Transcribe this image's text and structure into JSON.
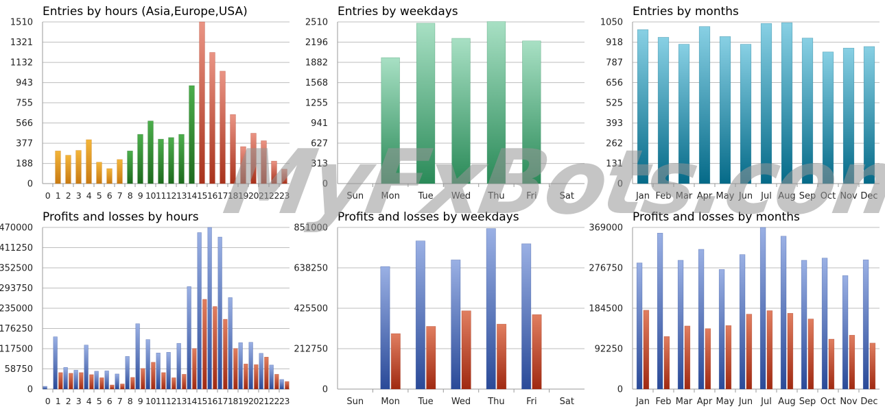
{
  "watermark": "MyFxBots.com",
  "colors": {
    "orange": [
      "#f3b53a",
      "#c87a12"
    ],
    "green": [
      "#4cae4c",
      "#1e6a1e"
    ],
    "red": [
      "#ea9484",
      "#a8321c"
    ],
    "teal": [
      "#a8e0c4",
      "#2a8a58"
    ],
    "cyan": [
      "#88d0e4",
      "#056a88"
    ],
    "blue": [
      "#9ab0e4",
      "#2a4a98"
    ],
    "darkred": [
      "#e07e60",
      "#a02a12"
    ]
  },
  "chart_data": [
    {
      "type": "bar",
      "title": "Entries by hours (Asia,Europe,USA)",
      "categories": [
        "0",
        "1",
        "2",
        "3",
        "4",
        "5",
        "6",
        "7",
        "8",
        "9",
        "10",
        "11",
        "12",
        "13",
        "14",
        "15",
        "16",
        "17",
        "18",
        "19",
        "20",
        "21",
        "22",
        "23"
      ],
      "ylim": [
        0,
        1510
      ],
      "yticks": [
        "0",
        "188",
        "377",
        "566",
        "755",
        "943",
        "1132",
        "1321",
        "1510"
      ],
      "series": [
        {
          "values": [
            0,
            305,
            265,
            310,
            410,
            200,
            140,
            225,
            305,
            460,
            585,
            415,
            430,
            460,
            915,
            1510,
            1225,
            1050,
            645,
            345,
            470,
            400,
            210,
            135
          ],
          "colors": [
            "orange",
            "orange",
            "orange",
            "orange",
            "orange",
            "orange",
            "orange",
            "orange",
            "green",
            "green",
            "green",
            "green",
            "green",
            "green",
            "green",
            "red",
            "red",
            "red",
            "red",
            "red",
            "red",
            "red",
            "red",
            "red"
          ]
        }
      ]
    },
    {
      "type": "bar",
      "title": "Entries by weekdays",
      "categories": [
        "Sun",
        "Mon",
        "Tue",
        "Wed",
        "Thu",
        "Fri",
        "Sat"
      ],
      "ylim": [
        0,
        2510
      ],
      "yticks": [
        "0",
        "313",
        "627",
        "941",
        "1255",
        "1568",
        "1882",
        "2196",
        "2510"
      ],
      "series": [
        {
          "values": [
            0,
            1955,
            2490,
            2255,
            2515,
            2215,
            0
          ],
          "colors": [
            "teal"
          ]
        }
      ]
    },
    {
      "type": "bar",
      "title": "Entries by months",
      "categories": [
        "Jan",
        "Feb",
        "Mar",
        "Apr",
        "May",
        "Jun",
        "Jul",
        "Aug",
        "Sep",
        "Oct",
        "Nov",
        "Dec"
      ],
      "ylim": [
        0,
        1050
      ],
      "yticks": [
        "0",
        "131",
        "262",
        "393",
        "525",
        "656",
        "787",
        "918",
        "1050"
      ],
      "series": [
        {
          "values": [
            1000,
            950,
            905,
            1020,
            955,
            905,
            1040,
            1045,
            945,
            855,
            880,
            890
          ],
          "colors": [
            "cyan"
          ]
        }
      ]
    },
    {
      "type": "bar",
      "title": "Profits and losses by hours",
      "categories": [
        "0",
        "1",
        "2",
        "3",
        "4",
        "5",
        "6",
        "7",
        "8",
        "9",
        "10",
        "11",
        "12",
        "13",
        "14",
        "15",
        "16",
        "17",
        "18",
        "19",
        "20",
        "21",
        "22",
        "23"
      ],
      "ylim": [
        0,
        470000
      ],
      "yticks": [
        "0",
        "58750",
        "117500",
        "176250",
        "235000",
        "293750",
        "352500",
        "411250",
        "470000"
      ],
      "series": [
        {
          "values": [
            8000,
            152000,
            63000,
            55000,
            128000,
            52000,
            53000,
            44000,
            95000,
            190000,
            144000,
            105000,
            107000,
            133000,
            298000,
            455000,
            470000,
            442000,
            266000,
            135000,
            136000,
            104000,
            70000,
            28000
          ],
          "colors": [
            "blue"
          ]
        },
        {
          "values": [
            0,
            48000,
            46000,
            48000,
            42000,
            33000,
            12000,
            15000,
            34000,
            60000,
            78000,
            48000,
            33000,
            43000,
            118000,
            261000,
            240000,
            203000,
            118000,
            73000,
            71000,
            93000,
            43000,
            22000
          ],
          "colors": [
            "darkred"
          ]
        }
      ]
    },
    {
      "type": "bar",
      "title": "Profits and losses by weekdays",
      "categories": [
        "Sun",
        "Mon",
        "Tue",
        "Wed",
        "Thu",
        "Fri",
        "Sat"
      ],
      "ylim": [
        0,
        851000
      ],
      "yticks": [
        "0",
        "212750",
        "425500",
        "638250",
        "851000"
      ],
      "series": [
        {
          "values": [
            0,
            645000,
            780000,
            680000,
            845000,
            765000,
            0
          ],
          "colors": [
            "blue"
          ]
        },
        {
          "values": [
            0,
            292000,
            330000,
            412000,
            342000,
            392000,
            0
          ],
          "colors": [
            "darkred"
          ]
        }
      ]
    },
    {
      "type": "bar",
      "title": "Profits and losses by months",
      "categories": [
        "Jan",
        "Feb",
        "Mar",
        "Apr",
        "May",
        "Jun",
        "Jul",
        "Aug",
        "Sep",
        "Oct",
        "Nov",
        "Dec"
      ],
      "ylim": [
        0,
        369000
      ],
      "yticks": [
        "0",
        "92250",
        "184500",
        "276750",
        "369000"
      ],
      "series": [
        {
          "values": [
            288000,
            356000,
            294000,
            319000,
            273000,
            307000,
            369000,
            349000,
            294000,
            299000,
            259000,
            295000
          ],
          "colors": [
            "blue"
          ]
        },
        {
          "values": [
            180000,
            120000,
            144000,
            138000,
            145000,
            171000,
            179000,
            173000,
            160000,
            114000,
            123000,
            105000
          ],
          "colors": [
            "darkred"
          ]
        }
      ]
    }
  ]
}
